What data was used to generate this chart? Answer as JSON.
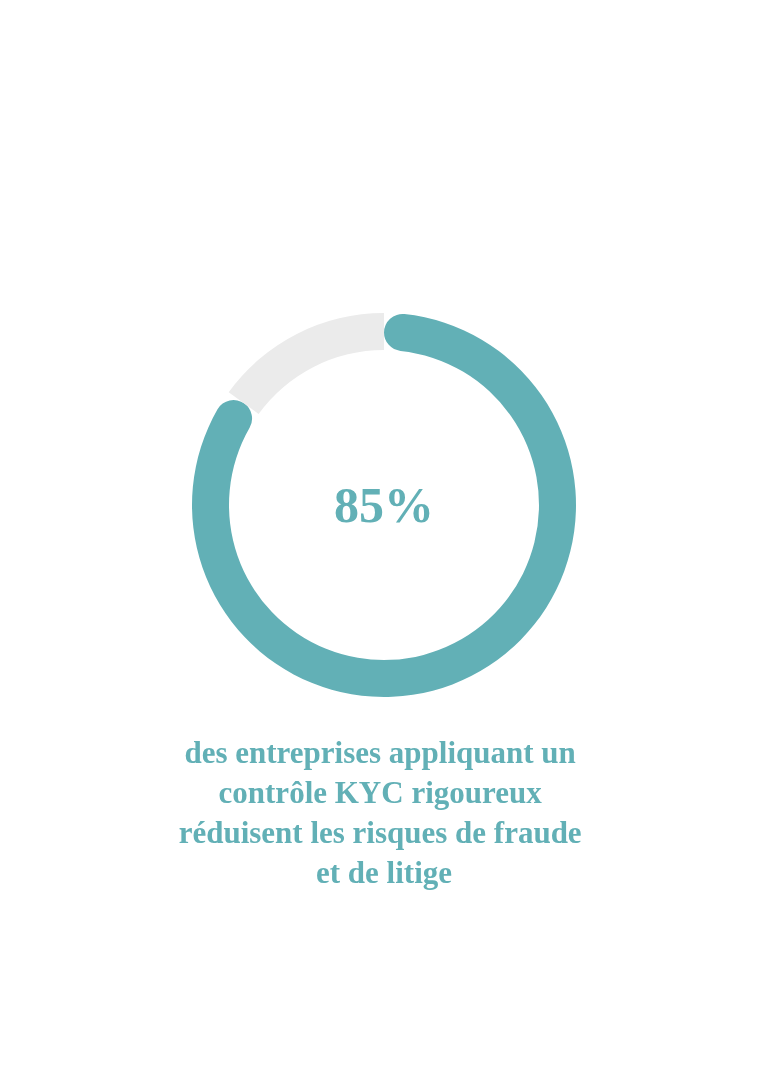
{
  "chart_data": {
    "type": "donut",
    "categories": [
      null,
      null
    ],
    "values": [
      85,
      15
    ],
    "colors": [
      "#62b0b6",
      "#ebebeb"
    ],
    "value_labels": [
      "85%",
      null
    ],
    "annotations": [
      "des entreprises appliquant un contrôle KYC rigoureux réduisent les risques de fraude et de litige"
    ]
  }
}
